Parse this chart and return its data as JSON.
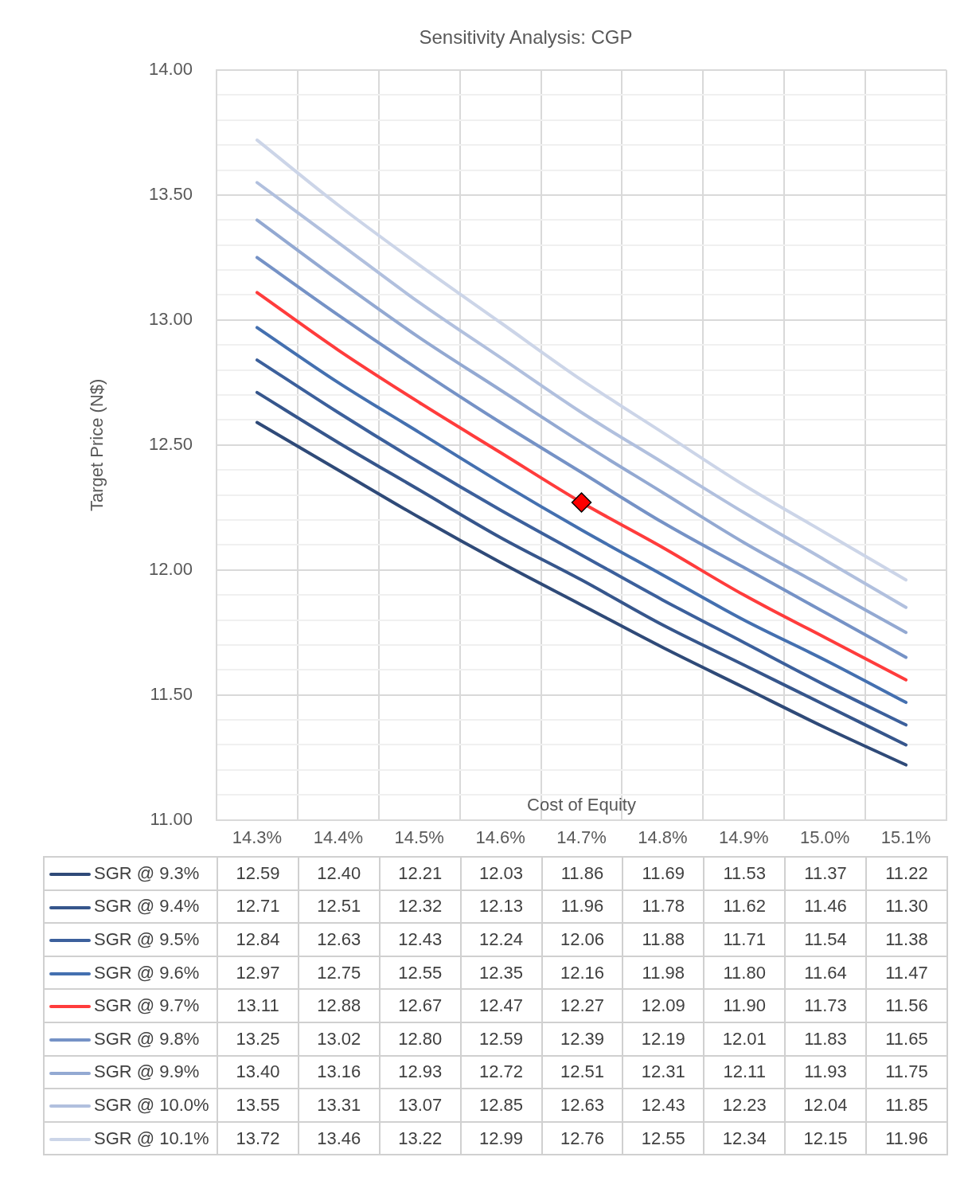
{
  "chart_data": {
    "type": "line",
    "title": "Sensitivity Analysis: CGP",
    "xlabel": "Cost of Equity",
    "ylabel": "Target Price (N$)",
    "categories": [
      "14.3%",
      "14.4%",
      "14.5%",
      "14.6%",
      "14.7%",
      "14.8%",
      "14.9%",
      "15.0%",
      "15.1%"
    ],
    "series": [
      {
        "name": "SGR @ 9.3%",
        "color": "#2f4a78",
        "values": [
          12.59,
          12.4,
          12.21,
          12.03,
          11.86,
          11.69,
          11.53,
          11.37,
          11.22
        ],
        "value_labels": [
          "12.59",
          "12.40",
          "12.21",
          "12.03",
          "11.86",
          "11.69",
          "11.53",
          "11.37",
          "11.22"
        ]
      },
      {
        "name": "SGR @ 9.4%",
        "color": "#36568c",
        "values": [
          12.71,
          12.51,
          12.32,
          12.13,
          11.96,
          11.78,
          11.62,
          11.46,
          11.3
        ],
        "value_labels": [
          "12.71",
          "12.51",
          "12.32",
          "12.13",
          "11.96",
          "11.78",
          "11.62",
          "11.46",
          "11.30"
        ]
      },
      {
        "name": "SGR @ 9.5%",
        "color": "#3c609c",
        "values": [
          12.84,
          12.63,
          12.43,
          12.24,
          12.06,
          11.88,
          11.71,
          11.54,
          11.38
        ],
        "value_labels": [
          "12.84",
          "12.63",
          "12.43",
          "12.24",
          "12.06",
          "11.88",
          "11.71",
          "11.54",
          "11.38"
        ]
      },
      {
        "name": "SGR @ 9.6%",
        "color": "#4470b0",
        "values": [
          12.97,
          12.75,
          12.55,
          12.35,
          12.16,
          11.98,
          11.8,
          11.64,
          11.47
        ],
        "value_labels": [
          "12.97",
          "12.75",
          "12.55",
          "12.35",
          "12.16",
          "11.98",
          "11.80",
          "11.64",
          "11.47"
        ]
      },
      {
        "name": "SGR @ 9.7%",
        "color": "#ff3c3c",
        "values": [
          13.11,
          12.88,
          12.67,
          12.47,
          12.27,
          12.09,
          11.9,
          11.73,
          11.56
        ],
        "value_labels": [
          "13.11",
          "12.88",
          "12.67",
          "12.47",
          "12.27",
          "12.09",
          "11.90",
          "11.73",
          "11.56"
        ]
      },
      {
        "name": "SGR @ 9.8%",
        "color": "#7592c6",
        "values": [
          13.25,
          13.02,
          12.8,
          12.59,
          12.39,
          12.19,
          12.01,
          11.83,
          11.65
        ],
        "value_labels": [
          "13.25",
          "13.02",
          "12.80",
          "12.59",
          "12.39",
          "12.19",
          "12.01",
          "11.83",
          "11.65"
        ]
      },
      {
        "name": "SGR @ 9.9%",
        "color": "#93a9d2",
        "values": [
          13.4,
          13.16,
          12.93,
          12.72,
          12.51,
          12.31,
          12.11,
          11.93,
          11.75
        ],
        "value_labels": [
          "13.40",
          "13.16",
          "12.93",
          "12.72",
          "12.51",
          "12.31",
          "12.11",
          "11.93",
          "11.75"
        ]
      },
      {
        "name": "SGR @ 10.0%",
        "color": "#b1c0de",
        "values": [
          13.55,
          13.31,
          13.07,
          12.85,
          12.63,
          12.43,
          12.23,
          12.04,
          11.85
        ],
        "value_labels": [
          "13.55",
          "13.31",
          "13.07",
          "12.85",
          "12.63",
          "12.43",
          "12.23",
          "12.04",
          "11.85"
        ]
      },
      {
        "name": "SGR @ 10.1%",
        "color": "#ccd5e8",
        "values": [
          13.72,
          13.46,
          13.22,
          12.99,
          12.76,
          12.55,
          12.34,
          12.15,
          11.96
        ],
        "value_labels": [
          "13.72",
          "13.46",
          "13.22",
          "12.99",
          "12.76",
          "12.55",
          "12.34",
          "12.15",
          "11.96"
        ]
      },
      {
        "type": "scatter",
        "x": [
          "14.7%"
        ],
        "values": [
          12.27
        ],
        "color": "#ff0000",
        "marker": "diamond"
      }
    ],
    "ylim": [
      11,
      14
    ],
    "yticks": [
      {
        "value": 11,
        "label": "11.00"
      },
      {
        "value": 11.1,
        "label": null
      },
      {
        "value": 11.2,
        "label": null
      },
      {
        "value": 11.3,
        "label": null
      },
      {
        "value": 11.4,
        "label": null
      },
      {
        "value": 11.5,
        "label": "11.50"
      },
      {
        "value": 11.6,
        "label": null
      },
      {
        "value": 11.7,
        "label": null
      },
      {
        "value": 11.8,
        "label": null
      },
      {
        "value": 11.9,
        "label": null
      },
      {
        "value": 12,
        "label": "12.00"
      },
      {
        "value": 12.1,
        "label": null
      },
      {
        "value": 12.2,
        "label": null
      },
      {
        "value": 12.3,
        "label": null
      },
      {
        "value": 12.4,
        "label": null
      },
      {
        "value": 12.5,
        "label": "12.50"
      },
      {
        "value": 12.6,
        "label": null
      },
      {
        "value": 12.7,
        "label": null
      },
      {
        "value": 12.8,
        "label": null
      },
      {
        "value": 12.9,
        "label": null
      },
      {
        "value": 13,
        "label": "13.00"
      },
      {
        "value": 13.1,
        "label": null
      },
      {
        "value": 13.2,
        "label": null
      },
      {
        "value": 13.3,
        "label": null
      },
      {
        "value": 13.4,
        "label": null
      },
      {
        "value": 13.5,
        "label": "13.50"
      },
      {
        "value": 13.6,
        "label": null
      },
      {
        "value": 13.7,
        "label": null
      },
      {
        "value": 13.8,
        "label": null
      },
      {
        "value": 13.9,
        "label": null
      },
      {
        "value": 14,
        "label": "14.00"
      }
    ],
    "grid": true,
    "legend": "left",
    "marker": "none",
    "line_style": "solid"
  }
}
